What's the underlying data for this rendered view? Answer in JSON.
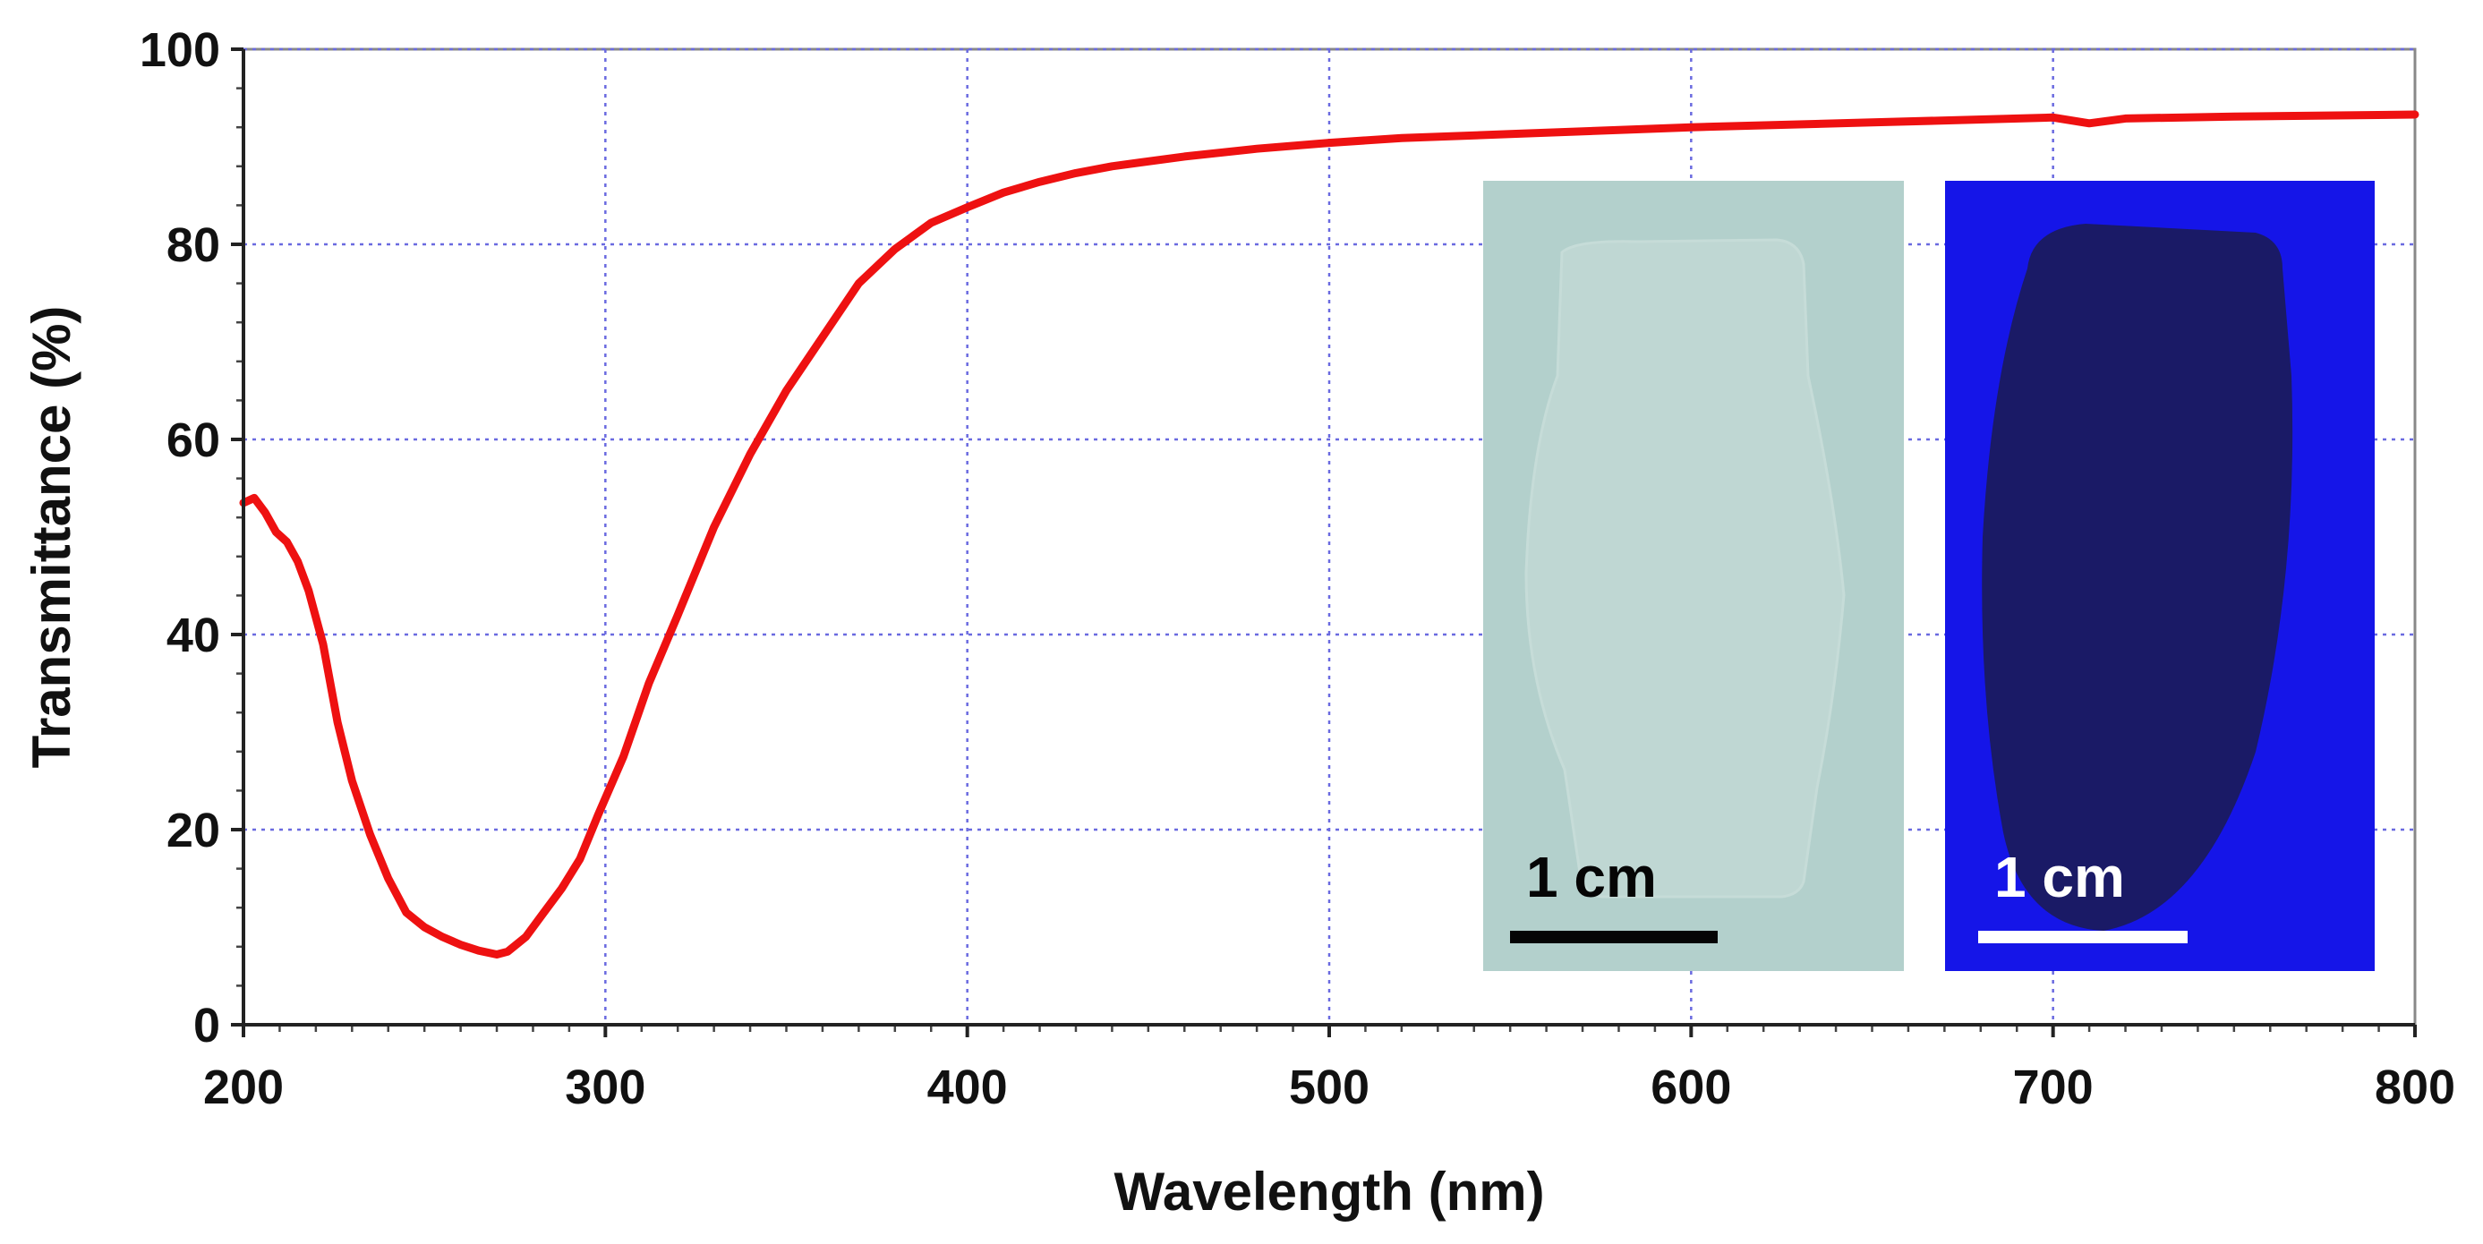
{
  "chart_data": {
    "type": "line",
    "xlabel": "Wavelength (nm)",
    "ylabel": "Transmittance (%)",
    "xlim": [
      200,
      800
    ],
    "ylim": [
      0,
      100
    ],
    "x_ticks": [
      "200",
      "300",
      "400",
      "500",
      "600",
      "700",
      "800"
    ],
    "y_ticks": [
      "0",
      "20",
      "40",
      "60",
      "80",
      "100"
    ],
    "grid": true,
    "series": [
      {
        "color": "#ee1111",
        "x": [
          200,
          203,
          206,
          209,
          212,
          215,
          218,
          222,
          226,
          230,
          235,
          240,
          245,
          250,
          255,
          260,
          265,
          270,
          273,
          278,
          283,
          288,
          293,
          298,
          305,
          312,
          320,
          330,
          340,
          350,
          360,
          370,
          380,
          390,
          400,
          410,
          420,
          430,
          440,
          460,
          480,
          500,
          520,
          550,
          600,
          650,
          700,
          710,
          720,
          750,
          800
        ],
        "y": [
          53.5,
          54,
          52.5,
          50.5,
          49.5,
          47.5,
          44.5,
          39,
          31,
          25,
          19.5,
          15,
          11.5,
          10,
          9,
          8.2,
          7.6,
          7.2,
          7.5,
          9,
          11.5,
          14,
          17,
          21.5,
          27.5,
          35,
          42,
          51,
          58.5,
          65,
          70.5,
          76,
          79.5,
          82.2,
          83.8,
          85.3,
          86.4,
          87.3,
          88,
          89,
          89.8,
          90.4,
          90.9,
          91.3,
          92,
          92.5,
          93,
          92.4,
          92.9,
          93.1,
          93.3
        ]
      }
    ],
    "insets": [
      {
        "label": "1 cm",
        "description_color": "#b3d0cc"
      },
      {
        "label": "1 cm",
        "description_color": "#1515e8"
      }
    ]
  }
}
